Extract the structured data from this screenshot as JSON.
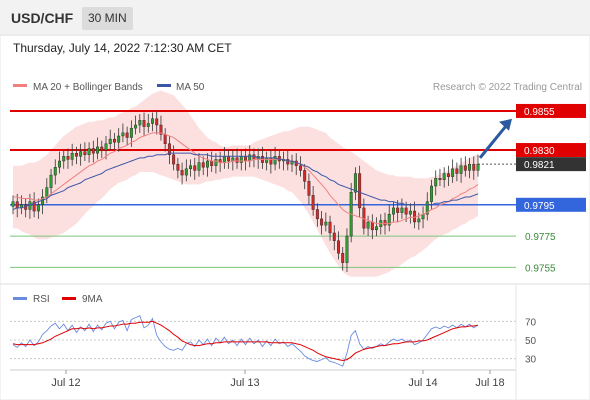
{
  "header": {
    "symbol": "USD/CHF",
    "interval": "30 MIN"
  },
  "timestamp": "Thursday, July 14, 2022 7:12:30 AM CET",
  "legend": {
    "ma_bb": "MA 20 + Bollinger Bands",
    "ma50": "MA 50"
  },
  "copyright": "Research © 2022 Trading Central",
  "rsi_legend": {
    "rsi": "RSI",
    "ma9": "9MA"
  },
  "colors": {
    "bull": "#2e9e2e",
    "bear": "#d02a2a",
    "ma20": "#f08080",
    "bb": "#f9c6c6",
    "ma50": "#3a56a6",
    "resistance": "#e00000",
    "support": "#3366dd",
    "support_green": "#7ac47a",
    "rsi": "#6a8ce0",
    "rsi_ma": "#e00000",
    "arrow": "#2c5aa0",
    "price_box": "#333333"
  },
  "chart_data": {
    "type": "candlestick",
    "price_axis": {
      "ylim": [
        0.9745,
        0.9862
      ]
    },
    "x_ticks": [
      "Jul 12",
      "Jul 13",
      "Jul 14",
      "Jul 18"
    ],
    "levels": [
      {
        "value": 0.9855,
        "label": "0.9855",
        "kind": "resistance"
      },
      {
        "value": 0.983,
        "label": "0.9830",
        "kind": "resistance"
      },
      {
        "value": 0.9795,
        "label": "0.9795",
        "kind": "support"
      },
      {
        "value": 0.9775,
        "label": "0.9775",
        "kind": "support-green"
      },
      {
        "value": 0.9755,
        "label": "0.9755",
        "kind": "support-green"
      }
    ],
    "current_price": {
      "value": 0.9821,
      "label": "0.9821"
    },
    "closes": [
      0.9797,
      0.9793,
      0.9795,
      0.9792,
      0.9797,
      0.9791,
      0.9795,
      0.98,
      0.9806,
      0.9814,
      0.9819,
      0.9823,
      0.9826,
      0.9824,
      0.9828,
      0.9826,
      0.9829,
      0.9827,
      0.9831,
      0.9828,
      0.9832,
      0.983,
      0.9834,
      0.9837,
      0.9835,
      0.9839,
      0.9841,
      0.9838,
      0.9844,
      0.9846,
      0.9849,
      0.9845,
      0.9847,
      0.985,
      0.9846,
      0.984,
      0.9834,
      0.9827,
      0.9821,
      0.9817,
      0.9814,
      0.9818,
      0.982,
      0.9817,
      0.9822,
      0.9819,
      0.9823,
      0.982,
      0.9824,
      0.9822,
      0.9826,
      0.9823,
      0.9825,
      0.9822,
      0.9826,
      0.9823,
      0.9827,
      0.9824,
      0.9826,
      0.9822,
      0.9825,
      0.9821,
      0.9826,
      0.9823,
      0.9824,
      0.9821,
      0.9823,
      0.982,
      0.9817,
      0.981,
      0.9801,
      0.9792,
      0.9786,
      0.9782,
      0.9784,
      0.9777,
      0.9772,
      0.9764,
      0.9758,
      0.9775,
      0.9803,
      0.9815,
      0.9793,
      0.978,
      0.9784,
      0.9779,
      0.9781,
      0.9785,
      0.9782,
      0.9789,
      0.9793,
      0.979,
      0.9793,
      0.9789,
      0.9791,
      0.9784,
      0.9786,
      0.9789,
      0.9797,
      0.9807,
      0.9812,
      0.9811,
      0.9815,
      0.9813,
      0.9818,
      0.9815,
      0.982,
      0.9817,
      0.9821,
      0.9817,
      0.9821
    ],
    "ma20": [
      0.98,
      0.98,
      0.9799,
      0.9799,
      0.9799,
      0.9798,
      0.9798,
      0.9799,
      0.98,
      0.9802,
      0.9804,
      0.9806,
      0.9808,
      0.981,
      0.9812,
      0.9814,
      0.9816,
      0.9818,
      0.982,
      0.9821,
      0.9823,
      0.9824,
      0.9826,
      0.9828,
      0.9829,
      0.9831,
      0.9832,
      0.9833,
      0.9835,
      0.9836,
      0.9838,
      0.9839,
      0.984,
      0.9841,
      0.9841,
      0.9841,
      0.984,
      0.9839,
      0.9838,
      0.9836,
      0.9834,
      0.9832,
      0.983,
      0.9828,
      0.9826,
      0.9825,
      0.9824,
      0.9823,
      0.9823,
      0.9822,
      0.9822,
      0.9822,
      0.9823,
      0.9823,
      0.9823,
      0.9823,
      0.9823,
      0.9824,
      0.9824,
      0.9824,
      0.9824,
      0.9824,
      0.9824,
      0.9824,
      0.9824,
      0.9823,
      0.9823,
      0.9822,
      0.9821,
      0.9819,
      0.9817,
      0.9814,
      0.9811,
      0.9808,
      0.9805,
      0.9801,
      0.9798,
      0.9795,
      0.9792,
      0.979,
      0.9789,
      0.9788,
      0.9787,
      0.9786,
      0.9785,
      0.9784,
      0.9783,
      0.9783,
      0.9783,
      0.9783,
      0.9784,
      0.9784,
      0.9785,
      0.9786,
      0.9787,
      0.9787,
      0.9788,
      0.9789,
      0.979,
      0.9792,
      0.9793,
      0.9795,
      0.9796,
      0.9797,
      0.9799,
      0.98,
      0.9802,
      0.9803,
      0.9805,
      0.9806,
      0.9808
    ],
    "bb_width": [
      0.002,
      0.002,
      0.0021,
      0.0022,
      0.0023,
      0.0024,
      0.0025,
      0.0026,
      0.0027,
      0.0028,
      0.0029,
      0.003,
      0.0031,
      0.0031,
      0.0031,
      0.0031,
      0.003,
      0.0029,
      0.0028,
      0.0027,
      0.0026,
      0.0025,
      0.0024,
      0.0023,
      0.0022,
      0.0022,
      0.0022,
      0.0022,
      0.0022,
      0.0022,
      0.0022,
      0.0023,
      0.0024,
      0.0025,
      0.0026,
      0.0027,
      0.0027,
      0.0027,
      0.0027,
      0.0026,
      0.0025,
      0.0024,
      0.0022,
      0.002,
      0.0018,
      0.0016,
      0.0014,
      0.0013,
      0.0012,
      0.0011,
      0.001,
      0.001,
      0.001,
      0.001,
      0.001,
      0.001,
      0.001,
      0.0011,
      0.0012,
      0.0013,
      0.0014,
      0.0015,
      0.0016,
      0.0017,
      0.0018,
      0.0019,
      0.002,
      0.0022,
      0.0024,
      0.0026,
      0.0028,
      0.003,
      0.0032,
      0.0034,
      0.0036,
      0.0037,
      0.0038,
      0.0039,
      0.004,
      0.004,
      0.004,
      0.0039,
      0.0038,
      0.0037,
      0.0036,
      0.0035,
      0.0034,
      0.0033,
      0.0032,
      0.0031,
      0.003,
      0.0029,
      0.0028,
      0.0027,
      0.0026,
      0.0025,
      0.0024,
      0.0023,
      0.0022,
      0.0021,
      0.002,
      0.002,
      0.002,
      0.002,
      0.002,
      0.002,
      0.002,
      0.002,
      0.002,
      0.002,
      0.002
    ],
    "ma50": [
      0.9792,
      0.9793,
      0.9793,
      0.9794,
      0.9795,
      0.9796,
      0.9797,
      0.9798,
      0.9799,
      0.9801,
      0.9802,
      0.9803,
      0.9804,
      0.9806,
      0.9807,
      0.9808,
      0.9809,
      0.9811,
      0.9812,
      0.9813,
      0.9814,
      0.9815,
      0.9817,
      0.9818,
      0.9819,
      0.982,
      0.9821,
      0.9822,
      0.9823,
      0.9824,
      0.9825,
      0.9825,
      0.9826,
      0.9826,
      0.9827,
      0.9827,
      0.9827,
      0.9828,
      0.9828,
      0.9828,
      0.9828,
      0.9828,
      0.9828,
      0.9827,
      0.9827,
      0.9827,
      0.9827,
      0.9826,
      0.9826,
      0.9826,
      0.9826,
      0.9826,
      0.9826,
      0.9826,
      0.9826,
      0.9826,
      0.9826,
      0.9826,
      0.9825,
      0.9825,
      0.9825,
      0.9825,
      0.9825,
      0.9824,
      0.9824,
      0.9823,
      0.9823,
      0.9822,
      0.9821,
      0.982,
      0.9819,
      0.9817,
      0.9816,
      0.9814,
      0.9813,
      0.9811,
      0.981,
      0.9808,
      0.9807,
      0.9806,
      0.9805,
      0.9804,
      0.9803,
      0.9802,
      0.9801,
      0.98,
      0.9799,
      0.9798,
      0.9798,
      0.9797,
      0.9797,
      0.9796,
      0.9796,
      0.9795,
      0.9795,
      0.9795,
      0.9795,
      0.9795,
      0.9795,
      0.9795,
      0.9796,
      0.9796,
      0.9797,
      0.9797,
      0.9798,
      0.9798,
      0.9799,
      0.98,
      0.98,
      0.9801,
      0.9802
    ],
    "rsi_axis": {
      "ylim": [
        20,
        80
      ],
      "ticks": [
        70,
        50,
        30
      ]
    },
    "rsi": [
      45,
      42,
      47,
      43,
      50,
      44,
      48,
      56,
      60,
      65,
      68,
      62,
      67,
      60,
      66,
      58,
      64,
      60,
      67,
      59,
      66,
      61,
      68,
      70,
      62,
      69,
      71,
      60,
      72,
      74,
      76,
      63,
      66,
      73,
      55,
      48,
      43,
      40,
      39,
      41,
      39,
      46,
      48,
      43,
      50,
      45,
      51,
      44,
      52,
      47,
      53,
      46,
      50,
      44,
      51,
      45,
      52,
      46,
      50,
      43,
      49,
      44,
      51,
      46,
      48,
      43,
      46,
      42,
      38,
      33,
      30,
      28,
      27,
      29,
      31,
      27,
      26,
      24,
      22,
      36,
      55,
      60,
      46,
      40,
      43,
      41,
      43,
      46,
      44,
      48,
      51,
      49,
      51,
      48,
      50,
      45,
      47,
      50,
      56,
      62,
      64,
      62,
      65,
      63,
      66,
      63,
      67,
      64,
      67,
      63,
      66
    ],
    "rsi_ma": [
      46,
      45,
      45,
      45,
      45,
      45,
      46,
      47,
      49,
      51,
      54,
      56,
      58,
      60,
      62,
      62,
      63,
      62,
      63,
      62,
      63,
      63,
      64,
      65,
      65,
      66,
      67,
      67,
      68,
      68,
      69,
      69,
      69,
      70,
      68,
      66,
      63,
      60,
      56,
      53,
      49,
      47,
      45,
      44,
      44,
      45,
      46,
      46,
      47,
      47,
      48,
      48,
      48,
      48,
      48,
      48,
      48,
      48,
      48,
      48,
      48,
      47,
      47,
      47,
      47,
      47,
      47,
      46,
      45,
      43,
      41,
      39,
      36,
      34,
      32,
      31,
      30,
      29,
      28,
      29,
      32,
      36,
      38,
      40,
      41,
      42,
      43,
      44,
      44,
      45,
      46,
      46,
      47,
      48,
      48,
      48,
      49,
      49,
      50,
      52,
      54,
      56,
      58,
      60,
      62,
      63,
      64,
      64,
      65,
      65,
      66
    ],
    "arrow": {
      "from": 0.9825,
      "to": 0.985
    }
  }
}
